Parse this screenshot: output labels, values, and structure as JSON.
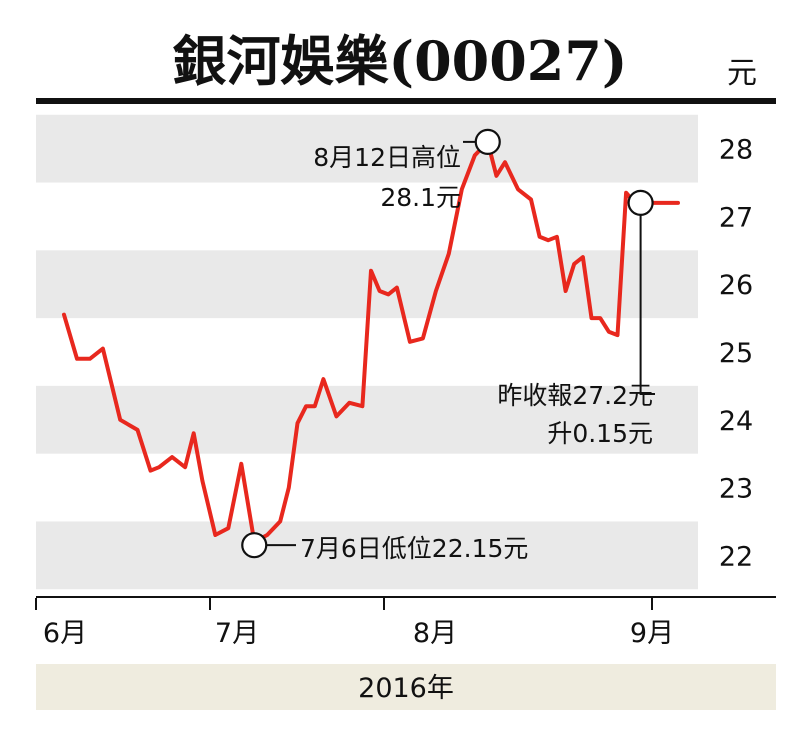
{
  "chart_data": {
    "type": "line",
    "title": "銀河娛樂(00027)",
    "unit": "元",
    "year_label": "2016年",
    "y_ticks": [
      22,
      23,
      24,
      25,
      26,
      27,
      28
    ],
    "ylim": [
      21.4,
      28.6
    ],
    "x_ticks": [
      "6月",
      "7月",
      "8月",
      "9月"
    ],
    "series": [
      {
        "color": "#e8281e",
        "x": [
          0,
          3,
          6,
          9,
          13,
          17,
          20,
          22,
          25,
          28,
          30,
          32,
          35,
          38,
          41,
          44,
          47,
          50,
          52,
          54,
          56,
          58,
          60,
          63,
          66,
          69,
          71,
          73,
          75,
          77,
          80,
          83,
          86,
          89,
          92,
          95,
          98,
          100,
          102,
          105,
          108,
          110,
          112,
          114,
          116,
          118,
          120,
          122,
          124,
          126,
          128,
          130,
          132,
          134,
          136,
          138,
          140,
          142
        ],
        "y": [
          25.55,
          24.9,
          24.9,
          25.05,
          24.0,
          23.85,
          23.25,
          23.3,
          23.45,
          23.3,
          23.8,
          23.1,
          22.3,
          22.4,
          23.35,
          22.2,
          22.3,
          22.5,
          23.0,
          23.95,
          24.2,
          24.2,
          24.6,
          24.05,
          24.25,
          24.2,
          26.2,
          25.9,
          25.85,
          25.95,
          25.15,
          25.2,
          25.9,
          26.45,
          27.4,
          27.9,
          28.1,
          27.6,
          27.8,
          27.4,
          27.25,
          26.7,
          26.65,
          26.7,
          25.9,
          26.3,
          26.4,
          25.5,
          25.5,
          25.3,
          25.25,
          27.35,
          27.2,
          27.2,
          27.2,
          27.2,
          27.2,
          27.2
        ]
      }
    ],
    "annotations": [
      {
        "line1": "8月12日高位",
        "line2": "28.1元",
        "x": 98,
        "y": 28.1
      },
      {
        "line1": "昨收報27.2元",
        "line2": "升0.15元",
        "x": 131.5,
        "y": 27.2
      },
      {
        "line1": "7月6日低位22.15元",
        "x": 44,
        "y": 22.15
      }
    ],
    "grid": "alternating-bands"
  }
}
